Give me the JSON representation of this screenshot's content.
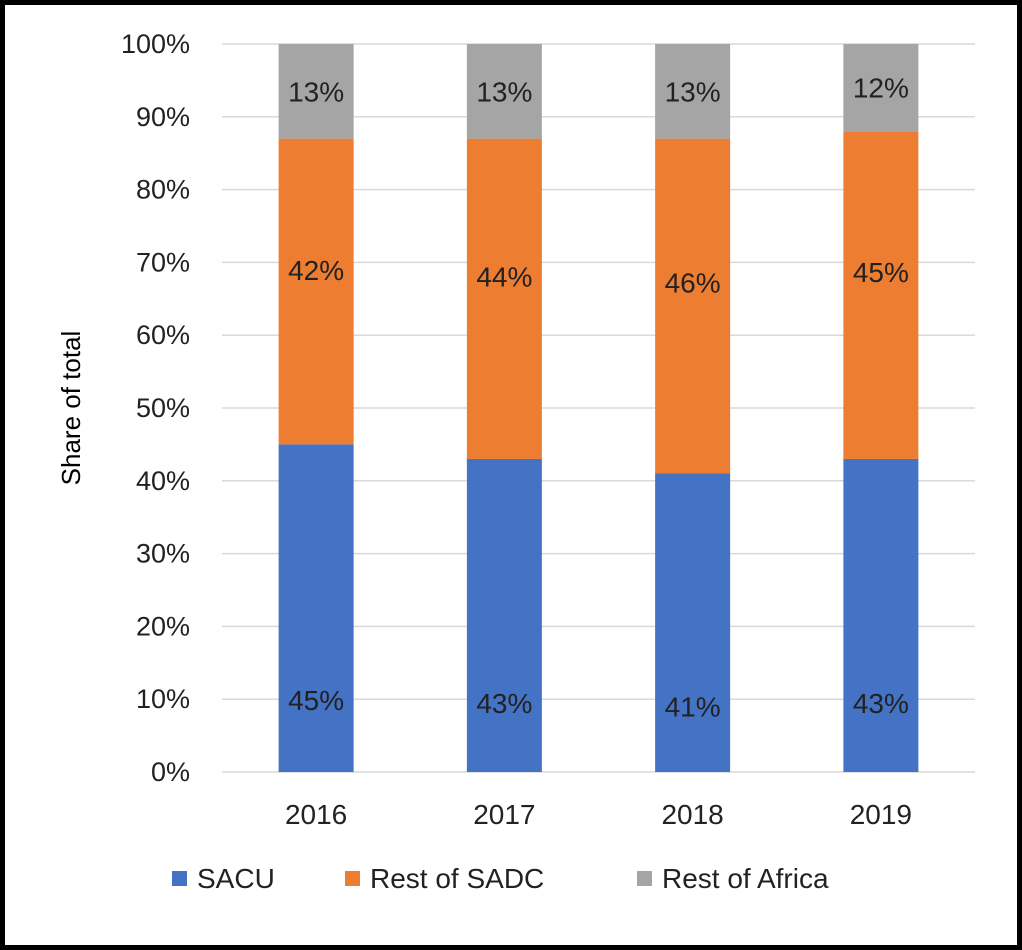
{
  "chart_data": {
    "type": "bar",
    "stacked": true,
    "categories": [
      "2016",
      "2017",
      "2018",
      "2019"
    ],
    "series": [
      {
        "name": "SACU",
        "color": "#4472C4",
        "values": [
          45,
          43,
          41,
          43
        ]
      },
      {
        "name": "Rest of SADC",
        "color": "#ED7D31",
        "values": [
          42,
          44,
          46,
          45
        ]
      },
      {
        "name": "Rest of Africa",
        "color": "#A5A5A5",
        "values": [
          13,
          13,
          13,
          12
        ]
      }
    ],
    "ylabel": "Share of total",
    "ylim": [
      0,
      100
    ],
    "yticks": [
      "0%",
      "10%",
      "20%",
      "30%",
      "40%",
      "50%",
      "60%",
      "70%",
      "80%",
      "90%",
      "100%"
    ],
    "grid": true,
    "legend": "bottom",
    "data_label_suffix": "%"
  }
}
